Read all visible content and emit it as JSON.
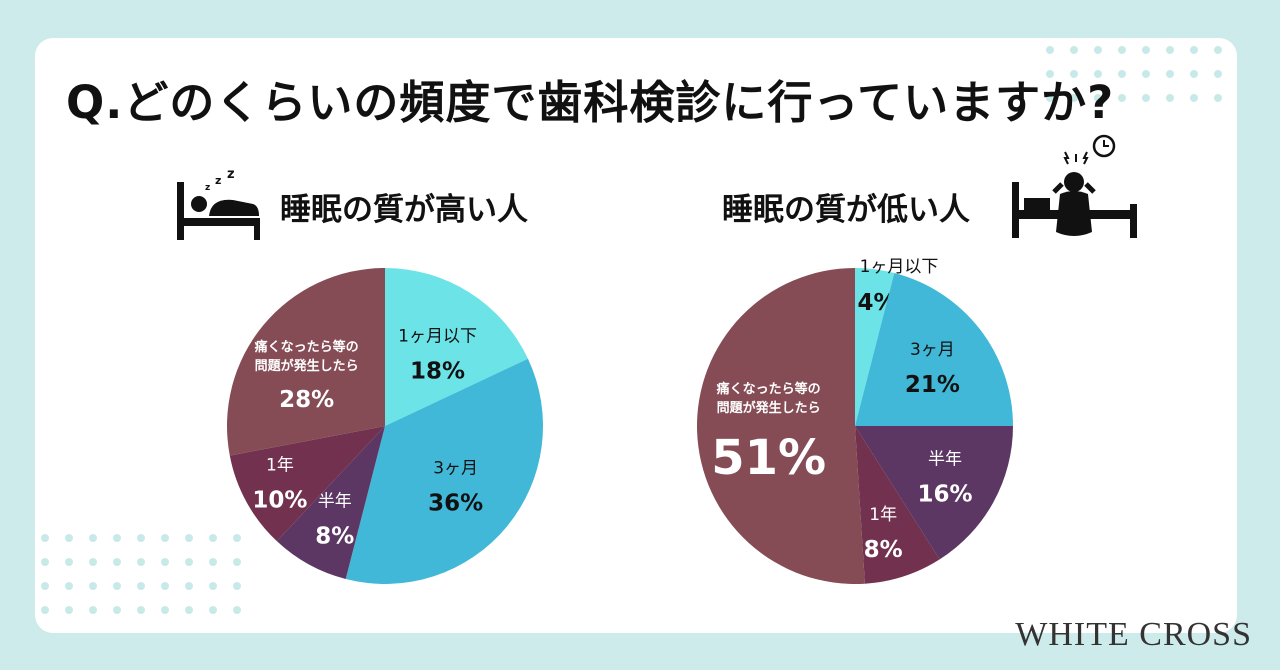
{
  "title": "Q.どのくらいの頻度で歯科検診に行っていますか?",
  "brand": "WHITE CROSS",
  "colors": {
    "within_month": "#6ce3e6",
    "three_months": "#42b8d9",
    "half_year": "#5c3763",
    "one_year": "#72324f",
    "when_problem": "#854c55"
  },
  "icons": {
    "left": "sleeping-in-bed-icon",
    "right": "distressed-awake-person-on-bed-icon",
    "clock": "alarm-clock-icon"
  },
  "chart_data": [
    {
      "type": "pie",
      "title": "睡眠の質が高い人",
      "categories": [
        "1ヶ月以下",
        "3ヶ月",
        "半年",
        "1年",
        "痛くなったら等の問題が発生したら"
      ],
      "values": [
        18,
        36,
        8,
        10,
        28
      ],
      "unit": "%"
    },
    {
      "type": "pie",
      "title": "睡眠の質が低い人",
      "categories": [
        "1ヶ月以下",
        "3ヶ月",
        "半年",
        "1年",
        "痛くなったら等の問題が発生したら"
      ],
      "values": [
        4,
        21,
        16,
        8,
        51
      ],
      "unit": "%"
    }
  ]
}
